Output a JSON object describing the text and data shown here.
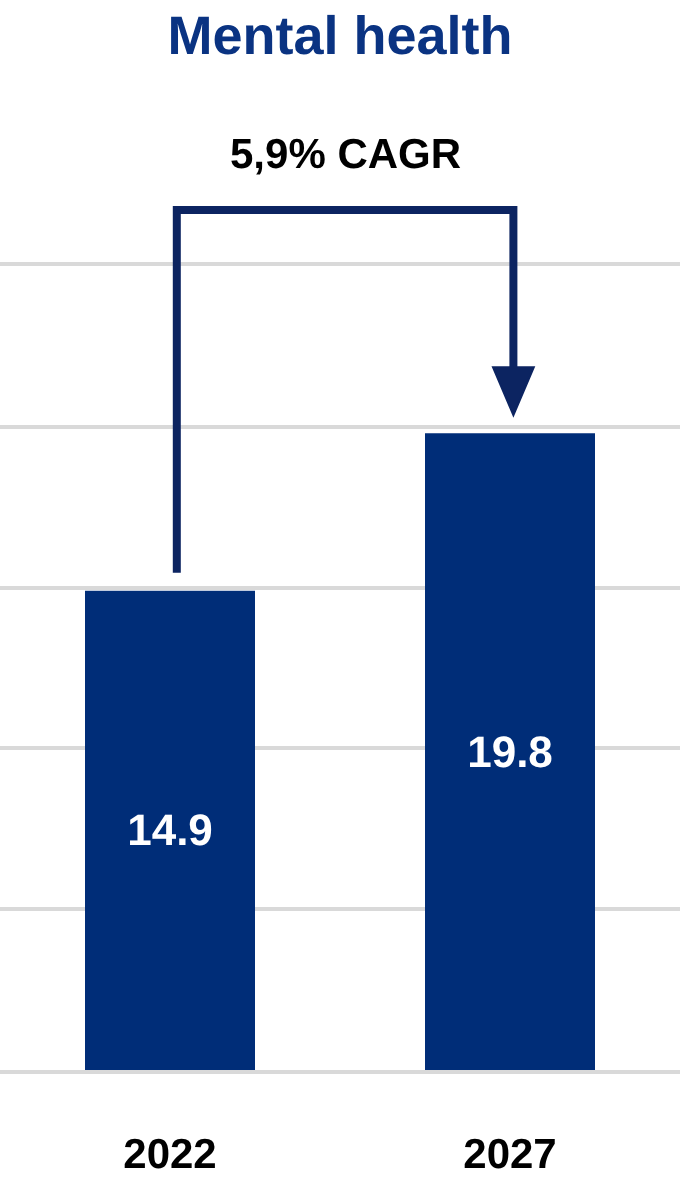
{
  "chart_data": {
    "type": "bar",
    "title": "Mental health",
    "categories": [
      "2022",
      "2027"
    ],
    "values": [
      14.9,
      19.8
    ],
    "color": "#002d78",
    "data_labels": true,
    "ylim": [
      0,
      25
    ],
    "yticks": [
      {
        "value": 0,
        "label": null
      },
      {
        "value": 5,
        "label": null
      },
      {
        "value": 10,
        "label": null
      },
      {
        "value": 15,
        "label": null
      },
      {
        "value": 20,
        "label": null
      },
      {
        "value": 25,
        "label": null
      }
    ],
    "grid": "y",
    "tick_labels": "x",
    "annotations": [
      "5,9% CAGR"
    ]
  }
}
